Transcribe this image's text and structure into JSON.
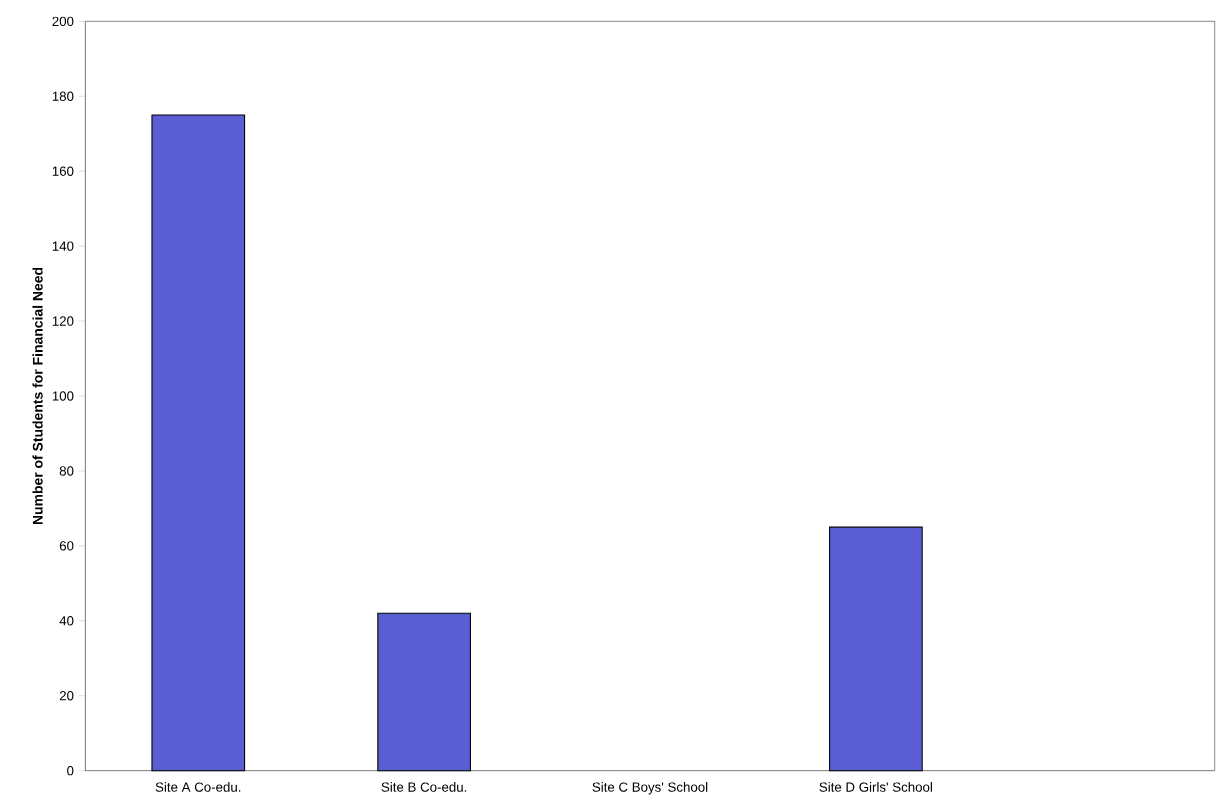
{
  "chart_data": {
    "type": "bar",
    "ylabel": "Number of Students for Financial Need",
    "categories": [
      "Site A Co-edu.",
      "Site B Co-edu.",
      "Site C Boys' School",
      "Site D Girls' School",
      null
    ],
    "values": [
      175,
      42,
      null,
      65,
      null
    ],
    "color": "#5a5ed2",
    "ylim": [
      0,
      200
    ],
    "yticks": [
      0,
      20,
      40,
      60,
      80,
      100,
      120,
      140,
      160,
      180,
      200
    ],
    "grid": false
  }
}
